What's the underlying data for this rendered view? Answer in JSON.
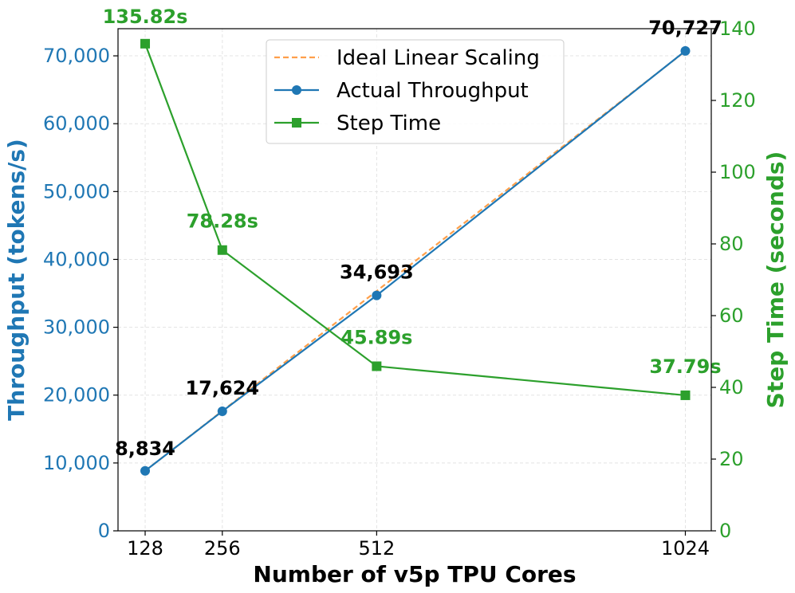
{
  "chart_data": {
    "type": "line",
    "xlabel": "Number of v5p TPU Cores",
    "ylabel_left": "Throughput (tokens/s)",
    "ylabel_right": "Step Time (seconds)",
    "x": [
      128,
      256,
      512,
      1024
    ],
    "x_ticks": [
      "128",
      "256",
      "512",
      "1024"
    ],
    "xlim": [
      83,
      1067
    ],
    "ylim_left": [
      0,
      74000
    ],
    "ylim_right": [
      0,
      140
    ],
    "y_ticks_left": [
      "0",
      "10,000",
      "20,000",
      "30,000",
      "40,000",
      "50,000",
      "60,000",
      "70,000"
    ],
    "y_ticks_right": [
      "0",
      "20",
      "40",
      "60",
      "80",
      "100",
      "120",
      "140"
    ],
    "grid": true,
    "legend_position": "top-center",
    "series": [
      {
        "name": "Ideal Linear Scaling",
        "axis": "left",
        "style": "dashed",
        "color": "#ff9f4a",
        "values": [
          8834,
          17668,
          35336,
          70672
        ]
      },
      {
        "name": "Actual Throughput",
        "axis": "left",
        "style": "solid",
        "marker": "circle",
        "color": "#1f77b4",
        "values": [
          8834,
          17624,
          34693,
          70727
        ],
        "labels": [
          "8,834",
          "17,624",
          "34,693",
          "70,727"
        ],
        "label_color": "#000000"
      },
      {
        "name": "Step Time",
        "axis": "right",
        "style": "solid",
        "marker": "square",
        "color": "#2ca02c",
        "values": [
          135.82,
          78.28,
          45.89,
          37.79
        ],
        "labels": [
          "135.82s",
          "78.28s",
          "45.89s",
          "37.79s"
        ],
        "label_color": "#2ca02c"
      }
    ]
  }
}
